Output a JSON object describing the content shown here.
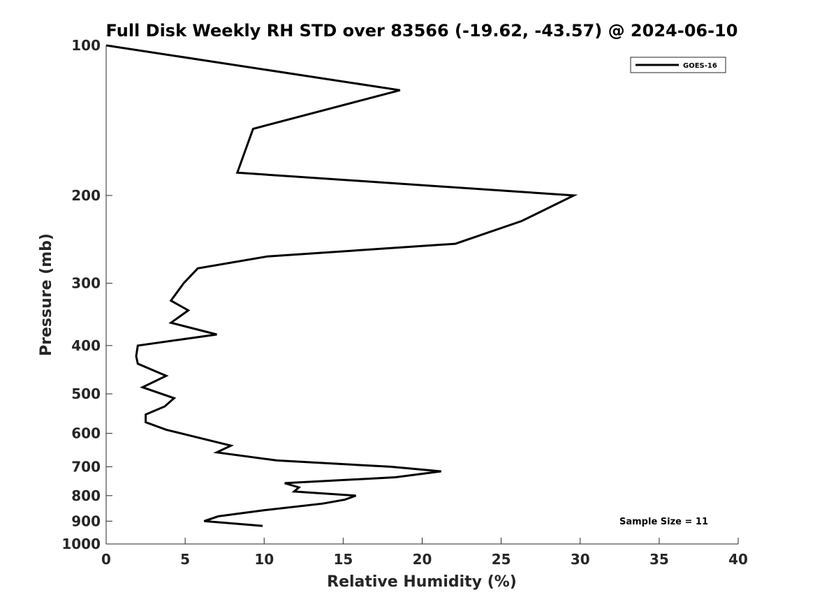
{
  "chart_data": {
    "type": "line",
    "title": "Full Disk Weekly RH STD over 83566 (-19.62, -43.57) @ 2024-06-10",
    "xlabel": "Relative Humidity (%)",
    "ylabel": "Pressure (mb)",
    "xlim": [
      0,
      40
    ],
    "ylim": [
      1000,
      100
    ],
    "yscale": "log",
    "grid": false,
    "legend_position": "top-right",
    "xticks": [
      0,
      5,
      10,
      15,
      20,
      25,
      30,
      35,
      40
    ],
    "xtick_labels": [
      "0",
      "5",
      "10",
      "15",
      "20",
      "25",
      "30",
      "35",
      "40"
    ],
    "yticks": [
      100,
      200,
      300,
      400,
      500,
      600,
      700,
      800,
      900,
      1000
    ],
    "ytick_labels": [
      "100",
      "200",
      "300",
      "400",
      "500",
      "600",
      "700",
      "800",
      "900",
      "1000"
    ],
    "series": [
      {
        "name": "GOES-16",
        "color": "#000000",
        "x": [
          0.0,
          18.6,
          9.3,
          8.3,
          29.6,
          26.3,
          22.1,
          10.2,
          5.8,
          4.9,
          4.1,
          5.2,
          4.1,
          7.0,
          2.0,
          1.9,
          2.0,
          3.8,
          2.3,
          4.3,
          3.7,
          2.5,
          2.5,
          3.8,
          5.2,
          7.9,
          7.0,
          10.8,
          18.0,
          21.2,
          18.3,
          11.3,
          12.2,
          11.9,
          15.8,
          15.1,
          13.7,
          10.1,
          7.1,
          6.2,
          9.9
        ],
        "y": [
          100,
          123,
          147,
          180,
          200,
          225,
          250,
          265,
          280,
          300,
          325,
          340,
          360,
          380,
          400,
          420,
          435,
          460,
          485,
          510,
          530,
          550,
          570,
          590,
          605,
          635,
          655,
          680,
          700,
          715,
          735,
          755,
          770,
          785,
          800,
          815,
          830,
          855,
          880,
          900,
          920
        ]
      }
    ],
    "annotations": [
      "Sample Size = 11"
    ]
  }
}
